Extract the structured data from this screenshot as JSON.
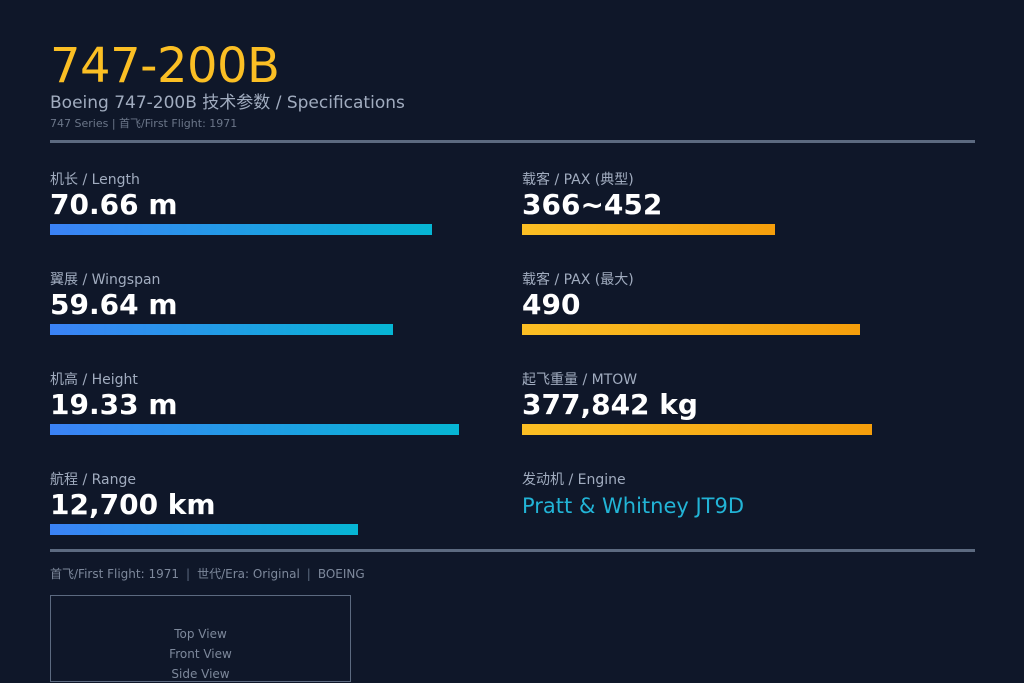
{
  "header": {
    "model": "747-200B",
    "subtitle": "Boeing 747-200B 技术参数 / Specifications",
    "series_line": "747 Series | 首飞/First Flight: 1971"
  },
  "specs_left": [
    {
      "label": "机长 / Length",
      "value": "70.66 m",
      "bar_fraction": 0.83
    },
    {
      "label": "翼展 / Wingspan",
      "value": "59.64 m",
      "bar_fraction": 0.746
    },
    {
      "label": "机高 / Height",
      "value": "19.33 m",
      "bar_fraction": 0.89
    },
    {
      "label": "航程 / Range",
      "value": "12,700 km",
      "bar_fraction": 0.67
    }
  ],
  "specs_right": [
    {
      "label": "载客 / PAX (典型)",
      "value": "366~452",
      "bar_fraction": 0.55
    },
    {
      "label": "载客 / PAX (最大)",
      "value": "490",
      "bar_fraction": 0.735
    },
    {
      "label": "起飞重量 / MTOW",
      "value": "377,842 kg",
      "bar_fraction": 0.76
    }
  ],
  "engine": {
    "label": "发动机 / Engine",
    "value": "Pratt & Whitney JT9D"
  },
  "footer": {
    "first_flight": "首飞/First Flight: 1971",
    "era": "世代/Era: Original",
    "maker": "BOEING"
  },
  "views": {
    "top": "Top View",
    "front": "Front View",
    "side": "Side View"
  },
  "colors": {
    "background": "#0f1729",
    "accent_gold": "#fbbf24",
    "accent_blue": "#3b82f6",
    "accent_cyan": "#06b6d4",
    "engine_text": "#22b4d6"
  }
}
